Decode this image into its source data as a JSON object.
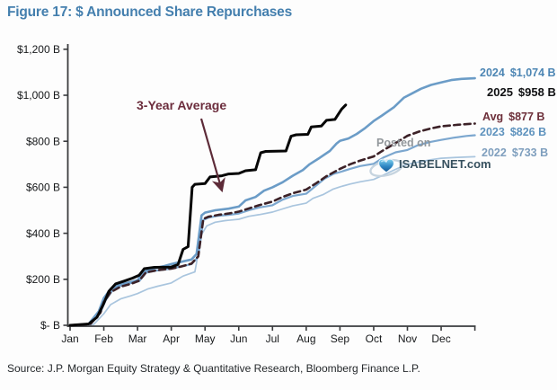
{
  "title": "Figure 17: $ Announced Share Repurchases",
  "source": "Source: J.P. Morgan Equity Strategy & Quantitative Research, Bloomberg Finance L.P.",
  "annotation": {
    "label": "3-Year Average",
    "color": "#6b2c3c"
  },
  "watermark": {
    "line1": "Posted on",
    "line2": "ISABELNET.com",
    "logo": "heart-globe-icon"
  },
  "legend": {
    "position": "right",
    "items": [
      {
        "year": "2024",
        "value": "$1,074 B",
        "color": "#4d86b4"
      },
      {
        "year": "2025",
        "value": "$958 B",
        "color": "#0f1012"
      },
      {
        "year": "Avg",
        "value": "$877 B",
        "color": "#6d2f3a"
      },
      {
        "year": "2023",
        "value": "$826 B",
        "color": "#5f93be"
      },
      {
        "year": "2022",
        "value": "$733 B",
        "color": "#7f9fbe"
      }
    ]
  },
  "chart_data": {
    "type": "line",
    "title": "Figure 17: $ Announced Share Repurchases",
    "xlabel": "",
    "ylabel": "",
    "x_unit": "months (0 = Jan 1, 12 = Dec 31), cumulative announced buybacks in $B",
    "ylim": [
      0,
      1200
    ],
    "grid": false,
    "legend_position": "right",
    "x_ticks": [
      "Jan",
      "Feb",
      "Mar",
      "Apr",
      "May",
      "Jun",
      "Jul",
      "Aug",
      "Sep",
      "Oct",
      "Nov",
      "Dec"
    ],
    "y_ticks": [
      {
        "label": "$1,200 B",
        "value": 1200
      },
      {
        "label": "$1,000 B",
        "value": 1000
      },
      {
        "label": "$800 B",
        "value": 800
      },
      {
        "label": "$600 B",
        "value": 600
      },
      {
        "label": "$400 B",
        "value": 400
      },
      {
        "label": "$200 B",
        "value": 200
      },
      {
        "label": "$- B",
        "value": 0
      }
    ],
    "series": [
      {
        "name": "2022",
        "end_value": 733,
        "end_label": "$733 B",
        "color": "#a9c5de",
        "width": 1.7,
        "dash": null,
        "points": [
          [
            0,
            0
          ],
          [
            0.7,
            4
          ],
          [
            1.0,
            50
          ],
          [
            1.2,
            90
          ],
          [
            1.5,
            115
          ],
          [
            1.8,
            128
          ],
          [
            2.0,
            138
          ],
          [
            2.3,
            158
          ],
          [
            2.6,
            170
          ],
          [
            3.0,
            184
          ],
          [
            3.35,
            214
          ],
          [
            3.7,
            232
          ],
          [
            3.9,
            395
          ],
          [
            4.05,
            432
          ],
          [
            4.3,
            448
          ],
          [
            4.6,
            455
          ],
          [
            5.0,
            461
          ],
          [
            5.3,
            474
          ],
          [
            5.6,
            481
          ],
          [
            6.0,
            492
          ],
          [
            6.3,
            506
          ],
          [
            6.6,
            519
          ],
          [
            7.0,
            531
          ],
          [
            7.2,
            552
          ],
          [
            7.5,
            568
          ],
          [
            7.8,
            592
          ],
          [
            8.0,
            602
          ],
          [
            8.3,
            614
          ],
          [
            8.6,
            624
          ],
          [
            9.0,
            634
          ],
          [
            9.3,
            654
          ],
          [
            9.65,
            678
          ],
          [
            10.0,
            700
          ],
          [
            10.35,
            710
          ],
          [
            10.7,
            720
          ],
          [
            11.0,
            726
          ],
          [
            11.5,
            730
          ],
          [
            12,
            733
          ]
        ]
      },
      {
        "name": "2023",
        "end_value": 826,
        "end_label": "$826 B",
        "color": "#7ca7cf",
        "width": 2.2,
        "dash": null,
        "points": [
          [
            0,
            0
          ],
          [
            0.6,
            5
          ],
          [
            0.9,
            55
          ],
          [
            1.05,
            108
          ],
          [
            1.25,
            150
          ],
          [
            1.5,
            172
          ],
          [
            1.8,
            184
          ],
          [
            2.05,
            192
          ],
          [
            2.25,
            228
          ],
          [
            2.55,
            238
          ],
          [
            3.0,
            246
          ],
          [
            3.3,
            256
          ],
          [
            3.6,
            266
          ],
          [
            3.8,
            298
          ],
          [
            3.95,
            458
          ],
          [
            4.1,
            468
          ],
          [
            4.4,
            476
          ],
          [
            4.7,
            480
          ],
          [
            5.0,
            486
          ],
          [
            5.3,
            500
          ],
          [
            5.6,
            512
          ],
          [
            6.0,
            522
          ],
          [
            6.3,
            546
          ],
          [
            6.6,
            562
          ],
          [
            7.0,
            572
          ],
          [
            7.25,
            602
          ],
          [
            7.55,
            638
          ],
          [
            7.8,
            658
          ],
          [
            8.0,
            666
          ],
          [
            8.3,
            680
          ],
          [
            8.6,
            692
          ],
          [
            9.0,
            702
          ],
          [
            9.3,
            730
          ],
          [
            9.65,
            752
          ],
          [
            10.0,
            762
          ],
          [
            10.3,
            782
          ],
          [
            10.65,
            796
          ],
          [
            11.0,
            806
          ],
          [
            11.4,
            816
          ],
          [
            11.75,
            823
          ],
          [
            12,
            826
          ]
        ]
      },
      {
        "name": "2024",
        "end_value": 1074,
        "end_label": "$1,074 B",
        "color": "#6b9cc7",
        "width": 2.6,
        "dash": null,
        "points": [
          [
            0,
            0
          ],
          [
            0.55,
            6
          ],
          [
            0.85,
            60
          ],
          [
            1.0,
            118
          ],
          [
            1.2,
            158
          ],
          [
            1.5,
            178
          ],
          [
            1.8,
            188
          ],
          [
            2.0,
            196
          ],
          [
            2.2,
            234
          ],
          [
            2.5,
            248
          ],
          [
            2.8,
            258
          ],
          [
            3.0,
            266
          ],
          [
            3.3,
            276
          ],
          [
            3.6,
            286
          ],
          [
            3.75,
            310
          ],
          [
            3.9,
            478
          ],
          [
            4.0,
            490
          ],
          [
            4.3,
            500
          ],
          [
            4.7,
            507
          ],
          [
            5.0,
            516
          ],
          [
            5.2,
            543
          ],
          [
            5.5,
            558
          ],
          [
            5.75,
            585
          ],
          [
            6.0,
            600
          ],
          [
            6.3,
            622
          ],
          [
            6.6,
            650
          ],
          [
            6.9,
            675
          ],
          [
            7.1,
            700
          ],
          [
            7.4,
            728
          ],
          [
            7.7,
            758
          ],
          [
            7.9,
            790
          ],
          [
            8.0,
            802
          ],
          [
            8.25,
            812
          ],
          [
            8.5,
            832
          ],
          [
            8.75,
            858
          ],
          [
            9.0,
            888
          ],
          [
            9.25,
            912
          ],
          [
            9.6,
            948
          ],
          [
            9.9,
            990
          ],
          [
            10.1,
            1005
          ],
          [
            10.4,
            1028
          ],
          [
            10.7,
            1045
          ],
          [
            11.0,
            1056
          ],
          [
            11.3,
            1066
          ],
          [
            11.6,
            1071
          ],
          [
            12,
            1074
          ]
        ]
      },
      {
        "name": "Avg",
        "end_value": 877,
        "end_label": "$877 B",
        "color": "#3c2127",
        "width": 2.6,
        "dash": "7 4.5",
        "points": [
          [
            0,
            0
          ],
          [
            0.6,
            5
          ],
          [
            0.9,
            55
          ],
          [
            1.0,
            100
          ],
          [
            1.2,
            144
          ],
          [
            1.5,
            168
          ],
          [
            1.8,
            180
          ],
          [
            2.05,
            194
          ],
          [
            2.25,
            230
          ],
          [
            2.6,
            240
          ],
          [
            3.0,
            246
          ],
          [
            3.3,
            256
          ],
          [
            3.6,
            268
          ],
          [
            3.8,
            300
          ],
          [
            3.95,
            462
          ],
          [
            4.1,
            472
          ],
          [
            4.4,
            480
          ],
          [
            4.7,
            486
          ],
          [
            5.0,
            494
          ],
          [
            5.3,
            508
          ],
          [
            5.6,
            522
          ],
          [
            6.0,
            538
          ],
          [
            6.3,
            558
          ],
          [
            6.6,
            574
          ],
          [
            7.0,
            590
          ],
          [
            7.3,
            618
          ],
          [
            7.6,
            648
          ],
          [
            8.0,
            680
          ],
          [
            8.3,
            700
          ],
          [
            8.6,
            716
          ],
          [
            9.0,
            734
          ],
          [
            9.3,
            762
          ],
          [
            9.65,
            792
          ],
          [
            10.0,
            824
          ],
          [
            10.35,
            842
          ],
          [
            10.7,
            856
          ],
          [
            11.0,
            865
          ],
          [
            11.5,
            872
          ],
          [
            12,
            877
          ]
        ]
      },
      {
        "name": "2025",
        "end_value": 958,
        "end_label": "$958 B",
        "color": "#060606",
        "width": 3,
        "dash": null,
        "points": [
          [
            0,
            0
          ],
          [
            0.55,
            6
          ],
          [
            0.8,
            35
          ],
          [
            1.0,
            95
          ],
          [
            1.15,
            148
          ],
          [
            1.35,
            180
          ],
          [
            1.6,
            192
          ],
          [
            1.85,
            205
          ],
          [
            2.05,
            218
          ],
          [
            2.2,
            246
          ],
          [
            2.5,
            252
          ],
          [
            3.0,
            253
          ],
          [
            3.2,
            264
          ],
          [
            3.35,
            330
          ],
          [
            3.5,
            342
          ],
          [
            3.62,
            600
          ],
          [
            3.7,
            613
          ],
          [
            4.0,
            616
          ],
          [
            4.15,
            645
          ],
          [
            4.5,
            650
          ],
          [
            4.7,
            658
          ],
          [
            5.0,
            660
          ],
          [
            5.2,
            672
          ],
          [
            5.5,
            676
          ],
          [
            5.65,
            750
          ],
          [
            5.8,
            756
          ],
          [
            6.4,
            758
          ],
          [
            6.55,
            822
          ],
          [
            6.7,
            828
          ],
          [
            7.05,
            830
          ],
          [
            7.15,
            862
          ],
          [
            7.45,
            866
          ],
          [
            7.6,
            891
          ],
          [
            7.85,
            895
          ],
          [
            8.05,
            940
          ],
          [
            8.17,
            958
          ]
        ]
      }
    ]
  }
}
